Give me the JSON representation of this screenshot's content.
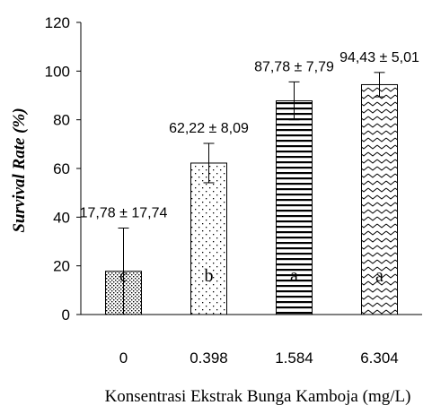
{
  "chart_data": {
    "type": "bar",
    "categories": [
      "0",
      "0.398",
      "1.584",
      "6.304"
    ],
    "values": [
      17.78,
      62.22,
      87.78,
      94.43
    ],
    "errors": [
      17.74,
      8.09,
      7.79,
      5.01
    ],
    "value_labels": [
      "17,78 ± 17,74",
      "62,22 ± 8,09",
      "87,78  ± 7,79",
      "94,43 ± 5,01"
    ],
    "letters": [
      "c",
      "b",
      "a",
      "a"
    ],
    "patterns": [
      "dense-dots",
      "sparse-dots",
      "horizontal-stripes",
      "zigzag"
    ],
    "xlabel": "Konsentrasi Ekstrak Bunga Kamboja  (mg/L)",
    "ylabel": "Survival Rate (%)",
    "ylim": [
      0,
      120
    ],
    "yticks": [
      0,
      20,
      40,
      60,
      80,
      100,
      120
    ],
    "grid": false,
    "bar_color": "#ffffff",
    "edge_color": "#000000"
  }
}
